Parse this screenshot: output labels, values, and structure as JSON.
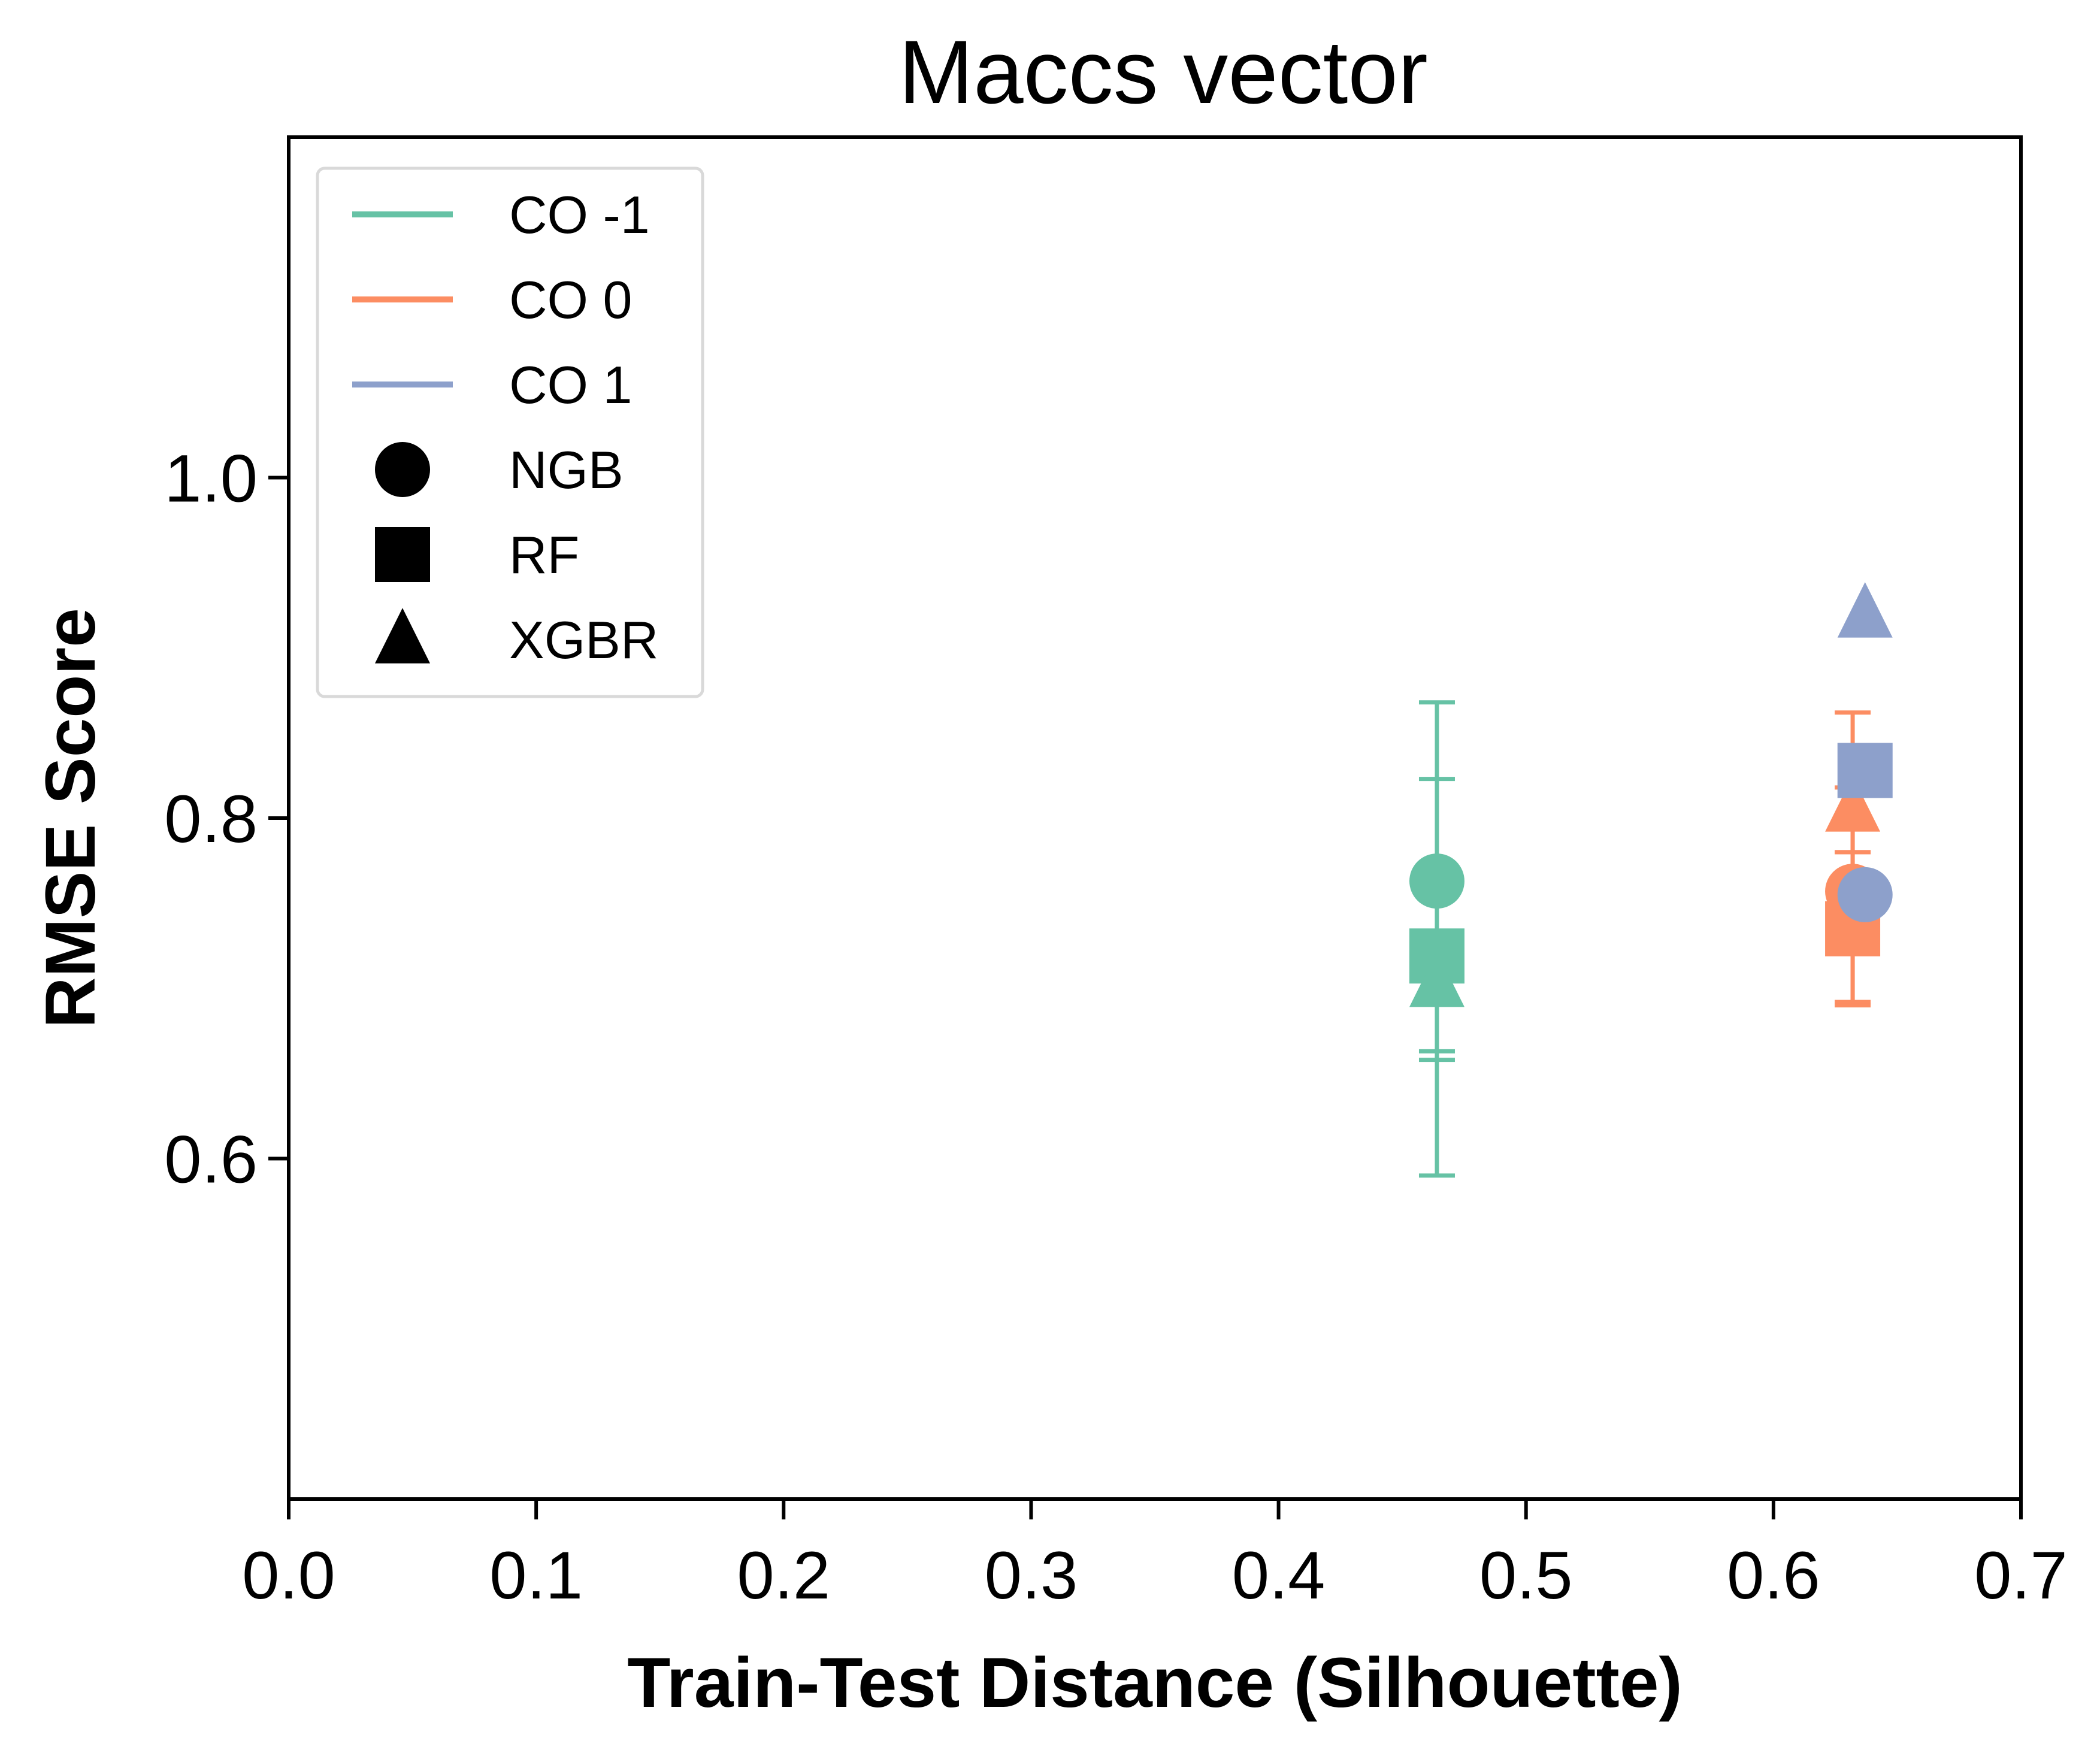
{
  "chart_data": {
    "type": "scatter",
    "title": "Maccs vector",
    "xlabel": "Train-Test Distance (Silhouette)",
    "ylabel": "RMSE Score",
    "xlim": [
      0.0,
      0.7
    ],
    "ylim": [
      0.4,
      1.2
    ],
    "x_ticks": [
      "0.0",
      "0.1",
      "0.2",
      "0.3",
      "0.4",
      "0.5",
      "0.6",
      "0.7"
    ],
    "y_ticks": [
      "0.6",
      "0.8",
      "1.0"
    ],
    "grid": false,
    "legend_position": "top-left",
    "series": [
      {
        "name": "CO -1",
        "color": "#66c2a5",
        "points": [
          {
            "model": "NGB",
            "x": 0.464,
            "y": 0.763,
            "err_low": 0.663,
            "err_high": 0.823
          },
          {
            "model": "RF",
            "x": 0.464,
            "y": 0.719,
            "err_low": 0.59,
            "err_high": 0.868
          },
          {
            "model": "XGBR",
            "x": 0.464,
            "y": 0.703,
            "err_low": 0.658,
            "err_high": 0.758
          }
        ]
      },
      {
        "name": "CO 0",
        "color": "#fc8d62",
        "points": [
          {
            "model": "NGB",
            "x": 0.632,
            "y": 0.757,
            "err_low": 0.692,
            "err_high": 0.862
          },
          {
            "model": "RF",
            "x": 0.632,
            "y": 0.735,
            "err_low": 0.69,
            "err_high": 0.78
          },
          {
            "model": "XGBR",
            "x": 0.632,
            "y": 0.806,
            "err_low": 0.78,
            "err_high": 0.818
          }
        ]
      },
      {
        "name": "CO 1",
        "color": "#8da0cb",
        "points": [
          {
            "model": "NGB",
            "x": 0.637,
            "y": 0.755
          },
          {
            "model": "RF",
            "x": 0.637,
            "y": 0.828
          },
          {
            "model": "XGBR",
            "x": 0.637,
            "y": 0.92
          }
        ]
      }
    ],
    "marker_legend": [
      {
        "name": "NGB",
        "marker": "circle"
      },
      {
        "name": "RF",
        "marker": "square"
      },
      {
        "name": "XGBR",
        "marker": "triangle"
      }
    ]
  }
}
